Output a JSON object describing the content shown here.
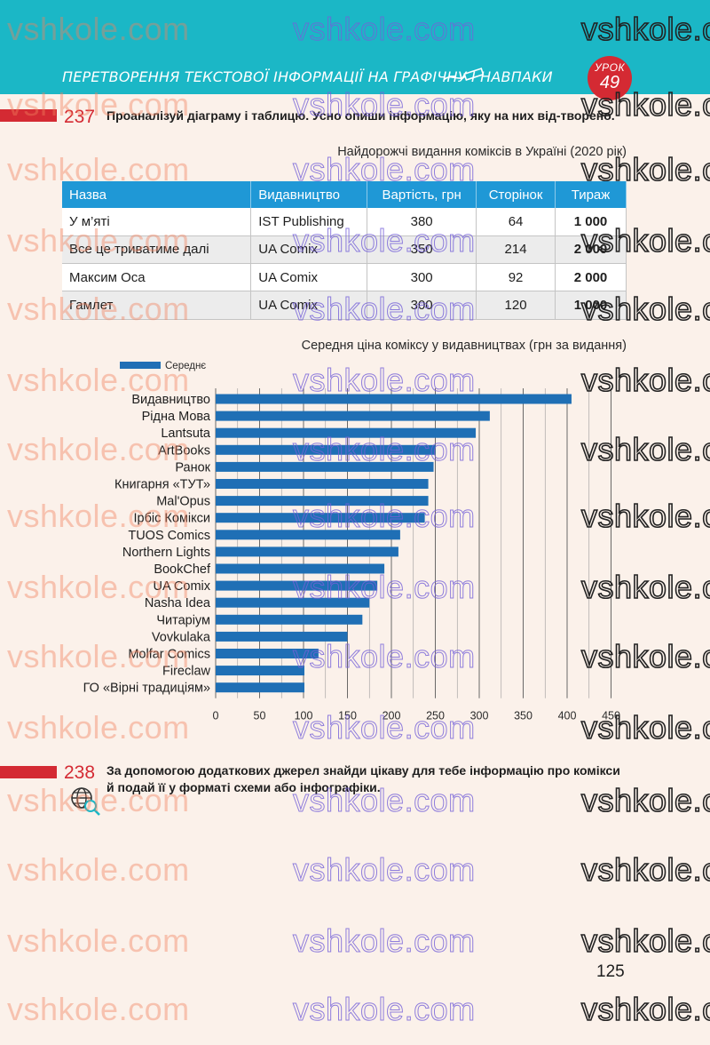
{
  "header": {
    "title": "ПЕРЕТВОРЕННЯ ТЕКСТОВОЇ ІНФОРМАЦІЇ НА ГРАФІЧНУ І НАВПАКИ",
    "lesson_word": "УРОК",
    "lesson_number": "49"
  },
  "task237": {
    "number": "237",
    "text": "Проаналізуй діаграму і таблицю. Усно опиши інформацію, яку на них від-творено."
  },
  "table": {
    "title": "Найдорожчі видання коміксів в Україні (2020 рік)",
    "headers": [
      "Назва",
      "Видавництво",
      "Вартість, грн",
      "Сторінок",
      "Тираж"
    ],
    "rows": [
      [
        "У м’яті",
        "IST Publishing",
        "380",
        "64",
        "1 000"
      ],
      [
        "Все це триватиме далі",
        "UA Comix",
        "350",
        "214",
        "2 000"
      ],
      [
        "Максим Оса",
        "UA Comix",
        "300",
        "92",
        "2 000"
      ],
      [
        "Гамлет",
        "UA Comix",
        "300",
        "120",
        "1 000"
      ]
    ]
  },
  "chart_title": "Середня ціна коміксу у видавництвах (грн за видання)",
  "chart_data": {
    "type": "bar",
    "orientation": "horizontal",
    "title": "Середня ціна коміксу у видавництвах (грн за видання)",
    "categories": [
      "Видавництво",
      "Рідна Мова",
      "Lantsuta",
      "ArtBooks",
      "Ранок",
      "Книгарня «ТУТ»",
      "Mal'Opus",
      "Ірбіс Комікси",
      "TUOS Comics",
      "Northern Lights",
      "BookChef",
      "UA Comix",
      "Nasha Idea",
      "Читаріум",
      "Vovkulaka",
      "Molfar Comics",
      "Fireclaw",
      "ГО «Вірні традиціям»"
    ],
    "series": [
      {
        "name": "Середнє",
        "values": [
          405,
          312,
          296,
          250,
          248,
          242,
          242,
          238,
          210,
          208,
          192,
          184,
          175,
          167,
          150,
          117,
          101,
          101
        ]
      }
    ],
    "xlim": [
      0,
      450
    ],
    "xticks": [
      "0",
      "50",
      "100",
      "150",
      "200",
      "250",
      "300",
      "350",
      "400",
      "450"
    ],
    "grid": "vertical",
    "legend": "top-left",
    "bar_color": "#1f6fb5"
  },
  "task238": {
    "number": "238",
    "text": "За допомогою додаткових джерел знайди цікаву для тебе інформацію про комікси й подай її у форматі схеми або інфографіки."
  },
  "page_number": "125",
  "watermark": "vshkole.com",
  "colors": {
    "header": "#1bb7c6",
    "accent_red": "#d42a33",
    "table_header": "#1f98d6",
    "bar": "#1f6fb5"
  }
}
